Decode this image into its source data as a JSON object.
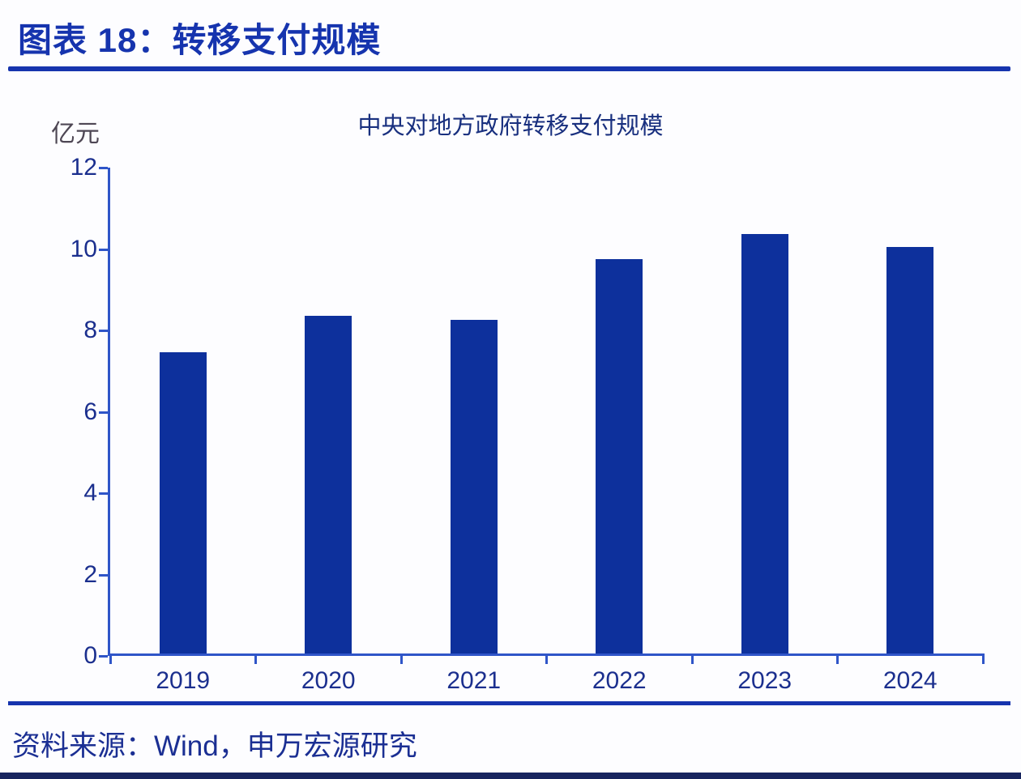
{
  "header": {
    "figure_title": "图表 18：转移支付规模"
  },
  "chart_data": {
    "type": "bar",
    "title": "中央对地方政府转移支付规模",
    "ylabel": "亿元",
    "xlabel": "",
    "categories": [
      "2019",
      "2020",
      "2021",
      "2022",
      "2023",
      "2024"
    ],
    "values": [
      7.4,
      8.3,
      8.2,
      9.7,
      10.3,
      10.0
    ],
    "ylim": [
      0,
      12
    ],
    "yticks": [
      0,
      2,
      4,
      6,
      8,
      10,
      12
    ],
    "grid": false,
    "legend_position": "none",
    "bar_color": "#0d309c",
    "axis_color": "#2f55c8",
    "tick_label_color": "#1b2f8e"
  },
  "footer": {
    "source": "资料来源：Wind，申万宏源研究"
  },
  "colors": {
    "accent_blue": "#1634ae",
    "bar_blue": "#0d309c",
    "axis_blue": "#2f55c8",
    "text_navy": "#1b2f8e",
    "unit_gray": "#4e4754",
    "chart_title_navy": "#19307f",
    "source_navy": "#1b2f93",
    "bottom_border_navy": "#17245e",
    "background": "#fdfdff"
  }
}
